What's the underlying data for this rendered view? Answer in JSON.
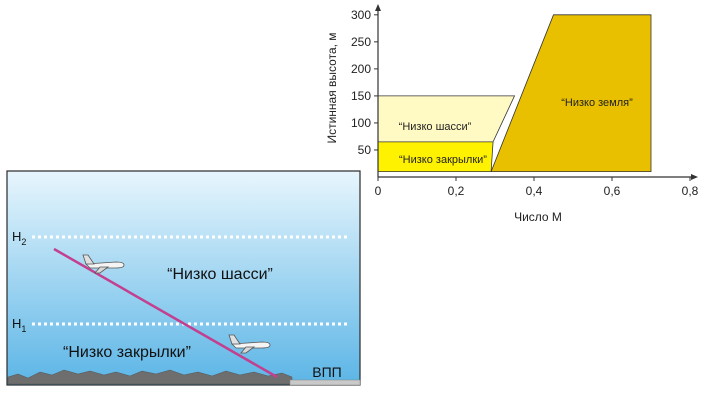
{
  "chart_data": {
    "type": "area",
    "xlabel": "Число М",
    "ylabel": "Истинная высота, м",
    "xlim": [
      0,
      0.8
    ],
    "ylim": [
      0,
      320
    ],
    "x_ticks": [
      "0",
      "0,2",
      "0,4",
      "0,6",
      "0,8"
    ],
    "y_ticks": [
      "50",
      "100",
      "150",
      "200",
      "250",
      "300"
    ],
    "regions": [
      {
        "name": "“Низко шасси”",
        "color": "#FFF9C4",
        "polygon": [
          [
            0,
            65
          ],
          [
            0,
            150
          ],
          [
            0.35,
            150
          ],
          [
            0.35,
            150
          ],
          [
            0.295,
            65
          ]
        ]
      },
      {
        "name": "“Низко закрылки”",
        "color": "#FFF200",
        "polygon": [
          [
            0,
            10
          ],
          [
            0,
            65
          ],
          [
            0.295,
            65
          ],
          [
            0.29,
            10
          ]
        ]
      },
      {
        "name": "“Низко земля”",
        "color": "#E8C000",
        "polygon": [
          [
            0.29,
            10
          ],
          [
            0.45,
            300
          ],
          [
            0.7,
            300
          ],
          [
            0.7,
            10
          ]
        ]
      }
    ]
  },
  "illustration": {
    "sky_top": "#E8F6FD",
    "sky_bottom": "#5BB5E6",
    "line_color": "#C2408F",
    "h2_label": "H",
    "h2_sub": "2",
    "h1_label": "H",
    "h1_sub": "1",
    "zone_gear": "“Низко шасси”",
    "zone_flaps": "“Низко закрылки”",
    "runway": "ВПП"
  }
}
